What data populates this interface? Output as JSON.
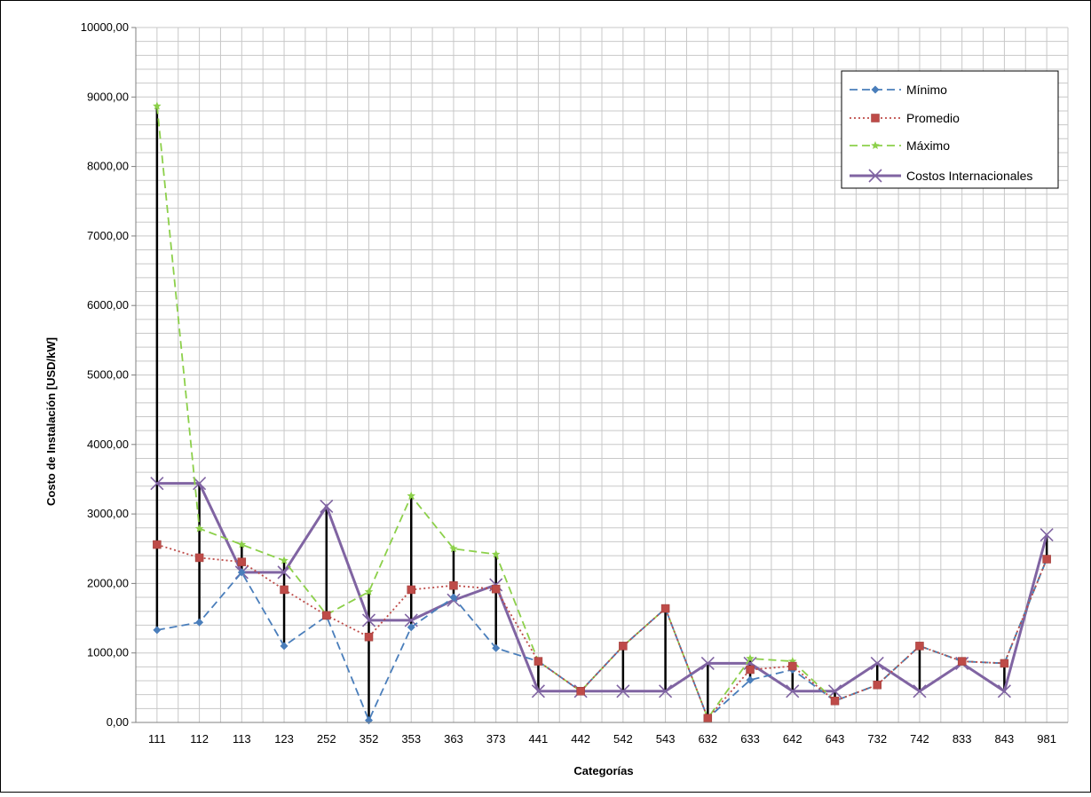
{
  "chart_data": {
    "type": "line",
    "title": "",
    "xlabel": "Categorías",
    "ylabel": "Costo de Instalación [USD/kW]",
    "ylim": [
      0,
      10000
    ],
    "grid": true,
    "legend_position": "top-right",
    "categories": [
      "111",
      "112",
      "113",
      "123",
      "252",
      "352",
      "353",
      "363",
      "373",
      "441",
      "442",
      "542",
      "543",
      "632",
      "633",
      "642",
      "643",
      "732",
      "742",
      "833",
      "843",
      "981"
    ],
    "y_ticks": [
      "0,00",
      "1000,00",
      "2000,00",
      "3000,00",
      "4000,00",
      "5000,00",
      "6000,00",
      "7000,00",
      "8000,00",
      "9000,00",
      "10000,00"
    ],
    "y_tick_values": [
      0,
      1000,
      2000,
      3000,
      4000,
      5000,
      6000,
      7000,
      8000,
      9000,
      10000
    ],
    "series": [
      {
        "name": "Mínimo",
        "color": "#4a7ebb",
        "style": "dashed",
        "marker": "diamond",
        "values": [
          1330,
          1440,
          2160,
          1100,
          1530,
          30,
          1370,
          1800,
          1070,
          880,
          450,
          1100,
          1640,
          60,
          610,
          760,
          310,
          540,
          1100,
          880,
          850,
          2350
        ]
      },
      {
        "name": "Promedio",
        "color": "#be4b48",
        "style": "dotted",
        "marker": "square",
        "values": [
          2560,
          2370,
          2310,
          1910,
          1540,
          1230,
          1910,
          1970,
          1920,
          880,
          450,
          1100,
          1640,
          60,
          760,
          810,
          310,
          540,
          1100,
          880,
          850,
          2350
        ]
      },
      {
        "name": "Máximo",
        "color": "#8cd04a",
        "style": "dashed",
        "marker": "star",
        "values": [
          8870,
          2790,
          2560,
          2330,
          1550,
          1880,
          3260,
          2500,
          2420,
          880,
          450,
          1100,
          1640,
          60,
          920,
          880,
          310,
          540,
          1100,
          880,
          850,
          2350
        ]
      },
      {
        "name": "Costos Internacionales",
        "color": "#8064a2",
        "style": "solid",
        "marker": "x",
        "values": [
          3440,
          3440,
          2160,
          2160,
          3110,
          1470,
          1470,
          1760,
          1980,
          450,
          450,
          450,
          450,
          850,
          850,
          450,
          450,
          850,
          450,
          850,
          450,
          2700
        ]
      }
    ]
  },
  "colors": {
    "grid": "#c8c8c8",
    "axis": "#808080",
    "range_line": "#000000"
  }
}
